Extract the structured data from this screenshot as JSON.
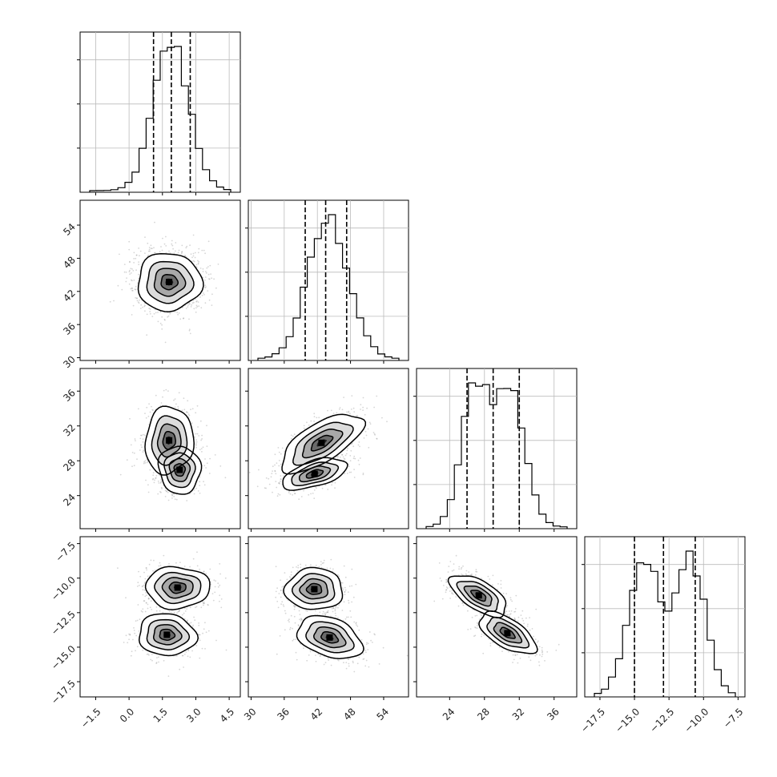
{
  "chart_data": {
    "type": "corner",
    "grid": true,
    "parameters": [
      {
        "range": [
          -2.2,
          5.0
        ],
        "ticks": [
          "−1.5",
          "0.0",
          "1.5",
          "3.0",
          "4.5"
        ],
        "tick_values": [
          -1.5,
          0.0,
          1.5,
          3.0,
          4.5
        ],
        "quantiles": [
          1.1,
          1.9,
          2.75
        ],
        "hist_peak": 1.9,
        "hist_mix": [
          [
            1.0,
            1.9,
            0.8
          ]
        ]
      },
      {
        "range": [
          29.5,
          58.5
        ],
        "ticks": [
          "30",
          "36",
          "42",
          "48",
          "54"
        ],
        "tick_values": [
          30,
          36,
          42,
          48,
          54
        ],
        "quantiles": [
          39.8,
          43.5,
          47.3
        ],
        "hist_mix": [
          [
            1.0,
            44.0,
            3.7
          ]
        ]
      },
      {
        "range": [
          20.2,
          38.6
        ],
        "ticks": [
          "24",
          "28",
          "32",
          "36"
        ],
        "tick_values": [
          24,
          28,
          32,
          36
        ],
        "quantiles": [
          26.0,
          29.0,
          32.0
        ],
        "hist_mix": [
          [
            1.0,
            27.0,
            1.6
          ],
          [
            0.95,
            31.0,
            1.7
          ]
        ]
      },
      {
        "range": [
          -18.6,
          -7.0
        ],
        "ticks": [
          "−17.5",
          "−15.0",
          "−12.5",
          "−10.0",
          "−7.5"
        ],
        "tick_values": [
          -17.5,
          -15.0,
          -12.5,
          -10.0,
          -7.5
        ],
        "quantiles": [
          -15.0,
          -12.9,
          -10.6
        ],
        "hist_mix": [
          [
            1.0,
            -14.3,
            1.15
          ],
          [
            1.0,
            -10.9,
            1.05
          ]
        ]
      }
    ],
    "panels_2d": [
      {
        "x": 0,
        "y": 1,
        "modes": [
          [
            1.8,
            44.0
          ]
        ]
      },
      {
        "x": 0,
        "y": 2,
        "modes": [
          [
            1.8,
            30.8
          ],
          [
            2.2,
            26.5
          ]
        ]
      },
      {
        "x": 1,
        "y": 2,
        "modes": [
          [
            44.2,
            30.8
          ],
          [
            41.5,
            26.5
          ]
        ]
      },
      {
        "x": 0,
        "y": 3,
        "modes": [
          [
            2.0,
            -10.8
          ],
          [
            1.7,
            -14.1
          ]
        ]
      },
      {
        "x": 1,
        "y": 3,
        "modes": [
          [
            40.0,
            -10.8
          ],
          [
            44.5,
            -14.3
          ]
        ]
      },
      {
        "x": 2,
        "y": 3,
        "modes": [
          [
            26.8,
            -10.9
          ],
          [
            31.0,
            -14.1
          ]
        ]
      }
    ]
  }
}
